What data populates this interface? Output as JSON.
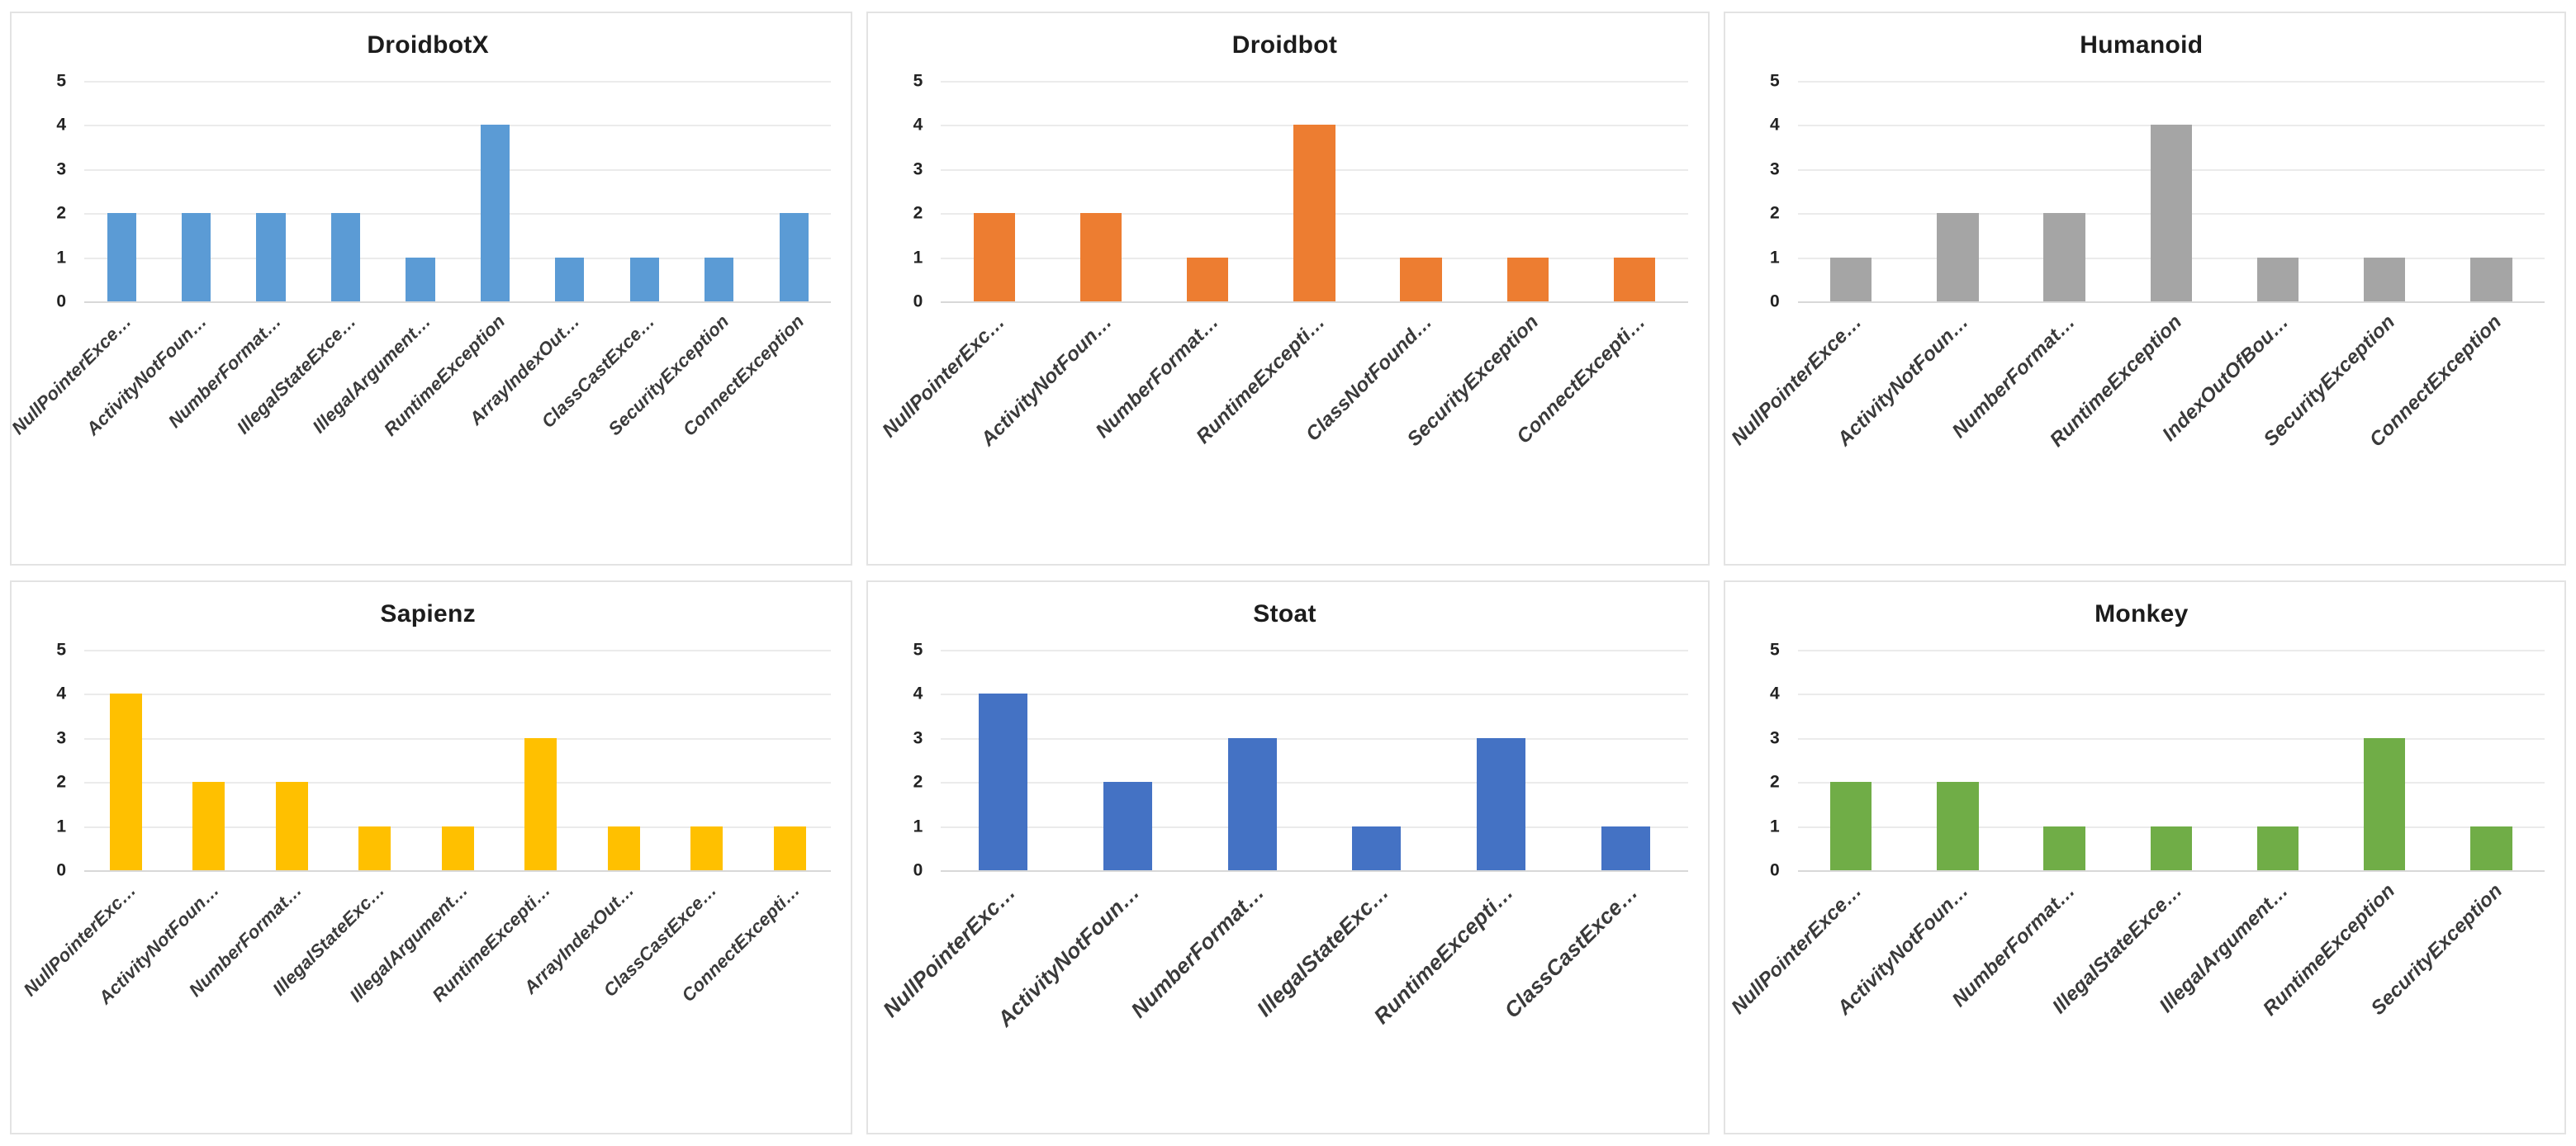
{
  "chart_data": [
    {
      "type": "bar",
      "title": "DroidbotX",
      "color": "#5B9BD5",
      "ylim": [
        0,
        5
      ],
      "yticks": [
        5,
        4,
        3,
        2,
        1,
        0
      ],
      "grid": true,
      "legend": "none",
      "categories": [
        "NullPointerExce…",
        "ActivityNotFoun…",
        "NumberFormat…",
        "IllegalStateExce…",
        "IllegalArgument…",
        "RuntimeException",
        "ArrayIndexOut…",
        "ClassCastExce…",
        "SecurityException",
        "ConnectException"
      ],
      "values": [
        2,
        2,
        2,
        2,
        1,
        4,
        1,
        1,
        1,
        2
      ]
    },
    {
      "type": "bar",
      "title": "Droidbot",
      "color": "#ED7D31",
      "ylim": [
        0,
        5
      ],
      "yticks": [
        5,
        4,
        3,
        2,
        1,
        0
      ],
      "grid": true,
      "legend": "none",
      "categories": [
        "NullPointerExc…",
        "ActivityNotFoun…",
        "NumberFormat…",
        "RuntimeExcepti…",
        "ClassNotFound…",
        "SecurityException",
        "ConnectExcepti…"
      ],
      "values": [
        2,
        2,
        1,
        4,
        1,
        1,
        1
      ]
    },
    {
      "type": "bar",
      "title": "Humanoid",
      "color": "#A5A5A5",
      "ylim": [
        0,
        5
      ],
      "yticks": [
        5,
        4,
        3,
        2,
        1,
        0
      ],
      "grid": true,
      "legend": "none",
      "categories": [
        "NullPointerExce…",
        "ActivityNotFoun…",
        "NumberFormat…",
        "RuntimeException",
        "IndexOutOfBou…",
        "SecurityException",
        "ConnectException"
      ],
      "values": [
        1,
        2,
        2,
        4,
        1,
        1,
        1
      ]
    },
    {
      "type": "bar",
      "title": "Sapienz",
      "color": "#FFC000",
      "ylim": [
        0,
        5
      ],
      "yticks": [
        5,
        4,
        3,
        2,
        1,
        0
      ],
      "grid": true,
      "legend": "none",
      "categories": [
        "NullPointerExc…",
        "ActivityNotFoun…",
        "NumberFormat…",
        "IllegalStateExc…",
        "IllegalArgument…",
        "RuntimeExcepti…",
        "ArrayIndexOut…",
        "ClassCastExce…",
        "ConnectExcepti…"
      ],
      "values": [
        4,
        2,
        2,
        1,
        1,
        3,
        1,
        1,
        1
      ]
    },
    {
      "type": "bar",
      "title": "Stoat",
      "color": "#4472C4",
      "ylim": [
        0,
        5
      ],
      "yticks": [
        5,
        4,
        3,
        2,
        1,
        0
      ],
      "grid": true,
      "legend": "none",
      "categories": [
        "NullPointerExc…",
        "ActivityNotFoun…",
        "NumberFormat…",
        "IllegalStateExc…",
        "RuntimeExcepti…",
        "ClassCastExce…"
      ],
      "values": [
        4,
        2,
        3,
        1,
        3,
        1
      ]
    },
    {
      "type": "bar",
      "title": "Monkey",
      "color": "#70AD47",
      "ylim": [
        0,
        5
      ],
      "yticks": [
        5,
        4,
        3,
        2,
        1,
        0
      ],
      "grid": true,
      "legend": "none",
      "categories": [
        "NullPointerExce…",
        "ActivityNotFoun…",
        "NumberFormat…",
        "IllegalStateExce…",
        "IllegalArgument…",
        "RuntimeException",
        "SecurityException"
      ],
      "values": [
        2,
        2,
        1,
        1,
        1,
        3,
        1
      ]
    }
  ]
}
